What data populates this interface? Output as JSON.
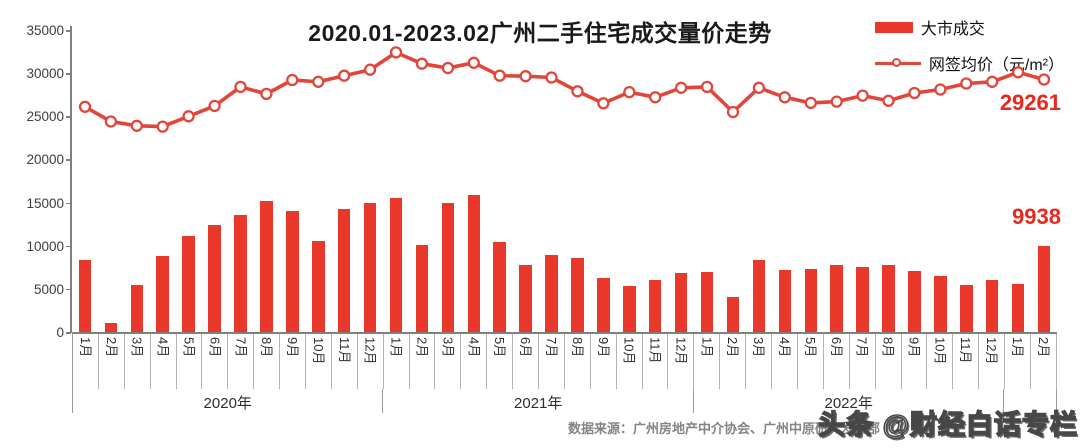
{
  "title": "2020.01-2023.02广州二手住宅成交量价走势",
  "legend": {
    "bar_label": "大市成交",
    "line_label": "网签均价（元/m²）"
  },
  "callouts": {
    "price_last": "29261",
    "volume_last": "9938"
  },
  "source": "数据来源：广州房地产中介协会、广州中原研究发展部",
  "watermark": "头条 @财经白话专栏",
  "colors": {
    "bar": "#e8382a",
    "line": "#e2463a",
    "marker_fill": "#ffffff",
    "callout": "#e8281e",
    "axis": "#808080",
    "text": "#1a1a1a"
  },
  "chart_data": {
    "type": "combo-bar-line",
    "title": "2020.01-2023.02广州二手住宅成交量价走势",
    "categories": [
      "1月",
      "2月",
      "3月",
      "4月",
      "5月",
      "6月",
      "7月",
      "8月",
      "9月",
      "10月",
      "11月",
      "12月",
      "1月",
      "2月",
      "3月",
      "4月",
      "5月",
      "6月",
      "7月",
      "8月",
      "9月",
      "10月",
      "11月",
      "12月",
      "1月",
      "2月",
      "3月",
      "4月",
      "5月",
      "6月",
      "7月",
      "8月",
      "9月",
      "10月",
      "11月",
      "12月",
      "1月",
      "2月"
    ],
    "year_groups": [
      {
        "label": "2020年",
        "span": 12
      },
      {
        "label": "2021年",
        "span": 12
      },
      {
        "label": "2022年",
        "span": 12
      },
      {
        "label": "",
        "span": 2
      }
    ],
    "series": [
      {
        "name": "大市成交",
        "type": "bar",
        "color": "#e8382a",
        "values": [
          8400,
          1100,
          5500,
          8800,
          11100,
          12450,
          13550,
          15150,
          14000,
          10600,
          14250,
          14900,
          15550,
          10050,
          14900,
          15900,
          10450,
          7800,
          8900,
          8550,
          6250,
          5300,
          6050,
          6850,
          7000,
          4100,
          8400,
          7150,
          7350,
          7800,
          7500,
          7800,
          7100,
          6500,
          5500,
          6050,
          5600,
          9938
        ]
      },
      {
        "name": "网签均价（元/m²）",
        "type": "line",
        "color": "#e2463a",
        "marker": "open-circle",
        "values": [
          26100,
          24400,
          23900,
          23800,
          25000,
          26200,
          28400,
          27600,
          29200,
          29000,
          29700,
          30400,
          32400,
          31100,
          30600,
          31200,
          29700,
          29650,
          29500,
          27900,
          26500,
          27800,
          27200,
          28300,
          28400,
          25500,
          28300,
          27200,
          26550,
          26700,
          27400,
          26800,
          27700,
          28100,
          28800,
          29000,
          30100,
          29261
        ]
      }
    ],
    "ylim": [
      0,
      35000
    ],
    "ytick_step": 5000,
    "grid": false,
    "legend_position": "top-right",
    "annotations": [
      {
        "text": "29261",
        "series": "网签均价（元/m²）",
        "point": "last"
      },
      {
        "text": "9938",
        "series": "大市成交",
        "point": "last"
      }
    ]
  }
}
